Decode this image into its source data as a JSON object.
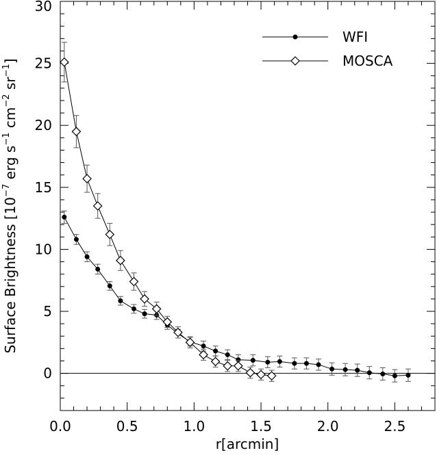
{
  "chart_data": {
    "type": "line",
    "title": "",
    "xlabel": "r[arcmin]",
    "ylabel_prefix": "Surface Brightness [10",
    "ylabel_exp1": "−7",
    "ylabel_mid1": " erg s",
    "ylabel_exp2": "−1",
    "ylabel_mid2": " cm",
    "ylabel_exp3": "−2",
    "ylabel_mid3": " sr",
    "ylabel_exp4": "−1",
    "ylabel_suffix": "]",
    "xlim": [
      0.0,
      2.8
    ],
    "ylim": [
      -3,
      30
    ],
    "xticks": [
      "0.0",
      "0.5",
      "1.0",
      "1.5",
      "2.0",
      "2.5"
    ],
    "yticks": [
      "0",
      "5",
      "10",
      "15",
      "20",
      "25",
      "30"
    ],
    "legend_position": "top-right",
    "grid": false,
    "zero_line": true,
    "series": [
      {
        "name": "WFI",
        "marker": "filled-circle",
        "points": [
          {
            "x": 0.03,
            "y": 12.6,
            "err": 0.5
          },
          {
            "x": 0.12,
            "y": 10.8,
            "err": 0.4
          },
          {
            "x": 0.2,
            "y": 9.4,
            "err": 0.4
          },
          {
            "x": 0.28,
            "y": 8.4,
            "err": 0.4
          },
          {
            "x": 0.37,
            "y": 7.05,
            "err": 0.35
          },
          {
            "x": 0.45,
            "y": 5.85,
            "err": 0.35
          },
          {
            "x": 0.55,
            "y": 5.2,
            "err": 0.35
          },
          {
            "x": 0.63,
            "y": 4.8,
            "err": 0.35
          },
          {
            "x": 0.72,
            "y": 4.7,
            "err": 0.35
          },
          {
            "x": 0.8,
            "y": 3.9,
            "err": 0.35
          },
          {
            "x": 0.88,
            "y": 3.2,
            "err": 0.35
          },
          {
            "x": 0.97,
            "y": 2.55,
            "err": 0.35
          },
          {
            "x": 1.07,
            "y": 2.2,
            "err": 0.4
          },
          {
            "x": 1.16,
            "y": 1.8,
            "err": 0.4
          },
          {
            "x": 1.25,
            "y": 1.5,
            "err": 0.4
          },
          {
            "x": 1.33,
            "y": 1.1,
            "err": 0.4
          },
          {
            "x": 1.44,
            "y": 1.05,
            "err": 0.45
          },
          {
            "x": 1.55,
            "y": 0.9,
            "err": 0.45
          },
          {
            "x": 1.64,
            "y": 0.95,
            "err": 0.45
          },
          {
            "x": 1.75,
            "y": 0.8,
            "err": 0.45
          },
          {
            "x": 1.84,
            "y": 0.8,
            "err": 0.45
          },
          {
            "x": 1.93,
            "y": 0.7,
            "err": 0.45
          },
          {
            "x": 2.03,
            "y": 0.35,
            "err": 0.5
          },
          {
            "x": 2.13,
            "y": 0.3,
            "err": 0.5
          },
          {
            "x": 2.22,
            "y": 0.25,
            "err": 0.5
          },
          {
            "x": 2.31,
            "y": 0.05,
            "err": 0.5
          },
          {
            "x": 2.41,
            "y": -0.05,
            "err": 0.5
          },
          {
            "x": 2.5,
            "y": -0.2,
            "err": 0.5
          },
          {
            "x": 2.6,
            "y": -0.15,
            "err": 0.5
          }
        ]
      },
      {
        "name": "MOSCA",
        "marker": "open-diamond",
        "points": [
          {
            "x": 0.03,
            "y": 25.1,
            "err": 1.6
          },
          {
            "x": 0.12,
            "y": 19.5,
            "err": 1.3
          },
          {
            "x": 0.2,
            "y": 15.7,
            "err": 1.1
          },
          {
            "x": 0.28,
            "y": 13.5,
            "err": 1.0
          },
          {
            "x": 0.37,
            "y": 11.2,
            "err": 0.9
          },
          {
            "x": 0.45,
            "y": 9.1,
            "err": 0.8
          },
          {
            "x": 0.55,
            "y": 7.4,
            "err": 0.7
          },
          {
            "x": 0.63,
            "y": 6.0,
            "err": 0.6
          },
          {
            "x": 0.72,
            "y": 5.2,
            "err": 0.55
          },
          {
            "x": 0.8,
            "y": 4.15,
            "err": 0.45
          },
          {
            "x": 0.88,
            "y": 3.3,
            "err": 0.45
          },
          {
            "x": 0.97,
            "y": 2.5,
            "err": 0.45
          },
          {
            "x": 1.07,
            "y": 1.5,
            "err": 0.45
          },
          {
            "x": 1.16,
            "y": 0.95,
            "err": 0.45
          },
          {
            "x": 1.25,
            "y": 0.6,
            "err": 0.45
          },
          {
            "x": 1.33,
            "y": 0.6,
            "err": 0.45
          },
          {
            "x": 1.42,
            "y": 0.05,
            "err": 0.45
          },
          {
            "x": 1.5,
            "y": -0.1,
            "err": 0.45
          },
          {
            "x": 1.58,
            "y": -0.2,
            "err": 0.45
          }
        ]
      }
    ]
  }
}
